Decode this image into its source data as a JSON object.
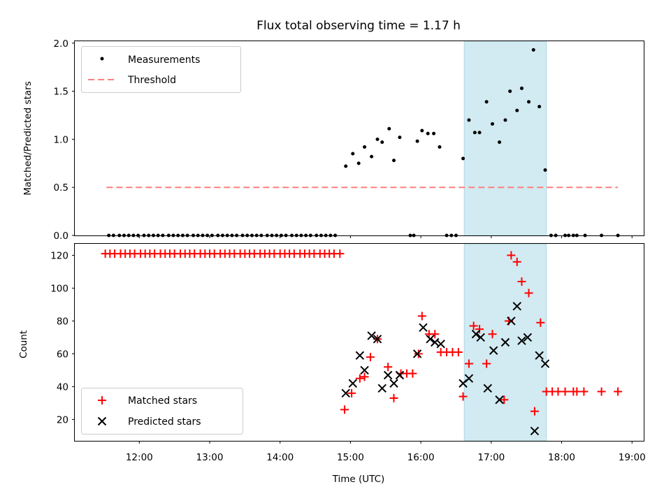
{
  "chart_data": [
    {
      "type": "scatter",
      "title": "Flux total observing time = 1.17 h",
      "xlabel": "",
      "ylabel": "Matched/Predicted stars",
      "xlim": [
        "11:05",
        "19:10"
      ],
      "ylim": [
        0,
        2.02
      ],
      "yticks": [
        "0.0",
        "0.5",
        "1.0",
        "1.5",
        "2.0"
      ],
      "highlight_span": {
        "start": "16:37",
        "end": "17:47",
        "color": "#add8e6"
      },
      "legend": {
        "position": "top-left",
        "entries": [
          "Measurements",
          "Threshold"
        ]
      },
      "threshold": {
        "name": "Threshold",
        "value": 0.5,
        "x_start": "11:32",
        "x_end": "18:48",
        "color": "#ff7f7f"
      },
      "series": [
        {
          "name": "Measurements",
          "color": "#000000",
          "points": [
            [
              "11:34",
              0
            ],
            [
              "11:38",
              0
            ],
            [
              "11:43",
              0
            ],
            [
              "11:47",
              0
            ],
            [
              "11:51",
              0
            ],
            [
              "11:55",
              0
            ],
            [
              "11:59",
              0
            ],
            [
              "12:04",
              0
            ],
            [
              "12:08",
              0
            ],
            [
              "12:12",
              0
            ],
            [
              "12:16",
              0
            ],
            [
              "12:20",
              0
            ],
            [
              "12:25",
              0
            ],
            [
              "12:29",
              0
            ],
            [
              "12:33",
              0
            ],
            [
              "12:37",
              0
            ],
            [
              "12:41",
              0
            ],
            [
              "12:46",
              0
            ],
            [
              "12:50",
              0
            ],
            [
              "12:54",
              0
            ],
            [
              "12:58",
              0
            ],
            [
              "13:02",
              0
            ],
            [
              "13:07",
              0
            ],
            [
              "13:11",
              0
            ],
            [
              "13:15",
              0
            ],
            [
              "13:19",
              0
            ],
            [
              "13:23",
              0
            ],
            [
              "13:28",
              0
            ],
            [
              "13:32",
              0
            ],
            [
              "13:36",
              0
            ],
            [
              "13:40",
              0
            ],
            [
              "13:44",
              0
            ],
            [
              "13:49",
              0
            ],
            [
              "13:53",
              0
            ],
            [
              "13:57",
              0
            ],
            [
              "14:01",
              0
            ],
            [
              "14:05",
              0
            ],
            [
              "14:10",
              0
            ],
            [
              "14:14",
              0
            ],
            [
              "14:18",
              0
            ],
            [
              "14:22",
              0
            ],
            [
              "14:26",
              0
            ],
            [
              "14:31",
              0
            ],
            [
              "14:35",
              0
            ],
            [
              "14:39",
              0
            ],
            [
              "14:43",
              0
            ],
            [
              "14:47",
              0
            ],
            [
              "14:56",
              0.72
            ],
            [
              "15:02",
              0.85
            ],
            [
              "15:07",
              0.75
            ],
            [
              "15:12",
              0.92
            ],
            [
              "15:18",
              0.82
            ],
            [
              "15:23",
              1.0
            ],
            [
              "15:27",
              0.97
            ],
            [
              "15:33",
              1.11
            ],
            [
              "15:37",
              0.78
            ],
            [
              "15:42",
              1.02
            ],
            [
              "15:51",
              0
            ],
            [
              "15:54",
              0
            ],
            [
              "15:57",
              0.98
            ],
            [
              "16:01",
              1.09
            ],
            [
              "16:06",
              1.06
            ],
            [
              "16:11",
              1.06
            ],
            [
              "16:16",
              0.92
            ],
            [
              "16:22",
              0
            ],
            [
              "16:26",
              0
            ],
            [
              "16:30",
              0
            ],
            [
              "16:36",
              0.8
            ],
            [
              "16:41",
              1.2
            ],
            [
              "16:46",
              1.07
            ],
            [
              "16:50",
              1.07
            ],
            [
              "16:56",
              1.39
            ],
            [
              "17:01",
              1.16
            ],
            [
              "17:07",
              0.97
            ],
            [
              "17:12",
              1.2
            ],
            [
              "17:16",
              1.5
            ],
            [
              "17:22",
              1.3
            ],
            [
              "17:26",
              1.53
            ],
            [
              "17:32",
              1.39
            ],
            [
              "17:36",
              1.93
            ],
            [
              "17:41",
              1.34
            ],
            [
              "17:46",
              0.68
            ],
            [
              "17:51",
              0
            ],
            [
              "17:55",
              0
            ],
            [
              "18:03",
              0
            ],
            [
              "18:06",
              0
            ],
            [
              "18:10",
              0
            ],
            [
              "18:13",
              0
            ],
            [
              "18:20",
              0
            ],
            [
              "18:34",
              0
            ],
            [
              "18:48",
              0
            ]
          ]
        }
      ]
    },
    {
      "type": "scatter",
      "title": "",
      "xlabel": "Time (UTC)",
      "ylabel": "Count",
      "xlim": [
        "11:05",
        "19:10"
      ],
      "ylim": [
        7,
        127
      ],
      "xticks": [
        "12:00",
        "13:00",
        "14:00",
        "15:00",
        "16:00",
        "17:00",
        "18:00",
        "19:00"
      ],
      "yticks": [
        "20",
        "40",
        "60",
        "80",
        "100",
        "120"
      ],
      "highlight_span": {
        "start": "16:37",
        "end": "17:47",
        "color": "#add8e6"
      },
      "legend": {
        "position": "bottom-left",
        "entries": [
          "Matched stars",
          "Predicted stars"
        ]
      },
      "series": [
        {
          "name": "Matched stars",
          "color": "#ff0000",
          "marker": "plus",
          "points": [
            [
              "11:31",
              121
            ],
            [
              "11:35",
              121
            ],
            [
              "11:39",
              121
            ],
            [
              "11:44",
              121
            ],
            [
              "11:48",
              121
            ],
            [
              "11:52",
              121
            ],
            [
              "11:56",
              121
            ],
            [
              "12:01",
              121
            ],
            [
              "12:05",
              121
            ],
            [
              "12:09",
              121
            ],
            [
              "12:13",
              121
            ],
            [
              "12:18",
              121
            ],
            [
              "12:22",
              121
            ],
            [
              "12:26",
              121
            ],
            [
              "12:30",
              121
            ],
            [
              "12:35",
              121
            ],
            [
              "12:39",
              121
            ],
            [
              "12:43",
              121
            ],
            [
              "12:47",
              121
            ],
            [
              "12:52",
              121
            ],
            [
              "12:56",
              121
            ],
            [
              "13:00",
              121
            ],
            [
              "13:04",
              121
            ],
            [
              "13:09",
              121
            ],
            [
              "13:13",
              121
            ],
            [
              "13:17",
              121
            ],
            [
              "13:21",
              121
            ],
            [
              "13:26",
              121
            ],
            [
              "13:30",
              121
            ],
            [
              "13:34",
              121
            ],
            [
              "13:38",
              121
            ],
            [
              "13:43",
              121
            ],
            [
              "13:47",
              121
            ],
            [
              "13:51",
              121
            ],
            [
              "13:55",
              121
            ],
            [
              "14:00",
              121
            ],
            [
              "14:04",
              121
            ],
            [
              "14:08",
              121
            ],
            [
              "14:12",
              121
            ],
            [
              "14:17",
              121
            ],
            [
              "14:21",
              121
            ],
            [
              "14:25",
              121
            ],
            [
              "14:29",
              121
            ],
            [
              "14:34",
              121
            ],
            [
              "14:38",
              121
            ],
            [
              "14:42",
              121
            ],
            [
              "14:46",
              121
            ],
            [
              "14:51",
              121
            ],
            [
              "14:55",
              26
            ],
            [
              "15:01",
              36
            ],
            [
              "15:08",
              45
            ],
            [
              "15:12",
              46
            ],
            [
              "15:17",
              58
            ],
            [
              "15:23",
              69
            ],
            [
              "15:32",
              52
            ],
            [
              "15:37",
              33
            ],
            [
              "15:43",
              48
            ],
            [
              "15:48",
              48
            ],
            [
              "15:53",
              48
            ],
            [
              "15:58",
              60
            ],
            [
              "16:01",
              83
            ],
            [
              "16:07",
              72
            ],
            [
              "16:12",
              72
            ],
            [
              "16:17",
              61
            ],
            [
              "16:22",
              61
            ],
            [
              "16:27",
              61
            ],
            [
              "16:32",
              61
            ],
            [
              "16:36",
              34
            ],
            [
              "16:41",
              54
            ],
            [
              "16:45",
              77
            ],
            [
              "16:50",
              75
            ],
            [
              "16:56",
              54
            ],
            [
              "17:01",
              72
            ],
            [
              "17:11",
              32
            ],
            [
              "17:15",
              80
            ],
            [
              "17:17",
              120
            ],
            [
              "17:22",
              116
            ],
            [
              "17:26",
              104
            ],
            [
              "17:32",
              97
            ],
            [
              "17:37",
              25
            ],
            [
              "17:42",
              79
            ],
            [
              "17:47",
              37
            ],
            [
              "17:52",
              37
            ],
            [
              "17:57",
              37
            ],
            [
              "18:03",
              37
            ],
            [
              "18:10",
              37
            ],
            [
              "18:13",
              37
            ],
            [
              "18:19",
              37
            ],
            [
              "18:34",
              37
            ],
            [
              "18:48",
              37
            ]
          ]
        },
        {
          "name": "Predicted stars",
          "color": "#000000",
          "marker": "x",
          "points": [
            [
              "14:56",
              36
            ],
            [
              "15:02",
              42
            ],
            [
              "15:08",
              59
            ],
            [
              "15:12",
              50
            ],
            [
              "15:18",
              71
            ],
            [
              "15:23",
              69
            ],
            [
              "15:27",
              39
            ],
            [
              "15:32",
              47
            ],
            [
              "15:37",
              42
            ],
            [
              "15:42",
              47
            ],
            [
              "15:57",
              60
            ],
            [
              "16:02",
              76
            ],
            [
              "16:08",
              69
            ],
            [
              "16:12",
              67
            ],
            [
              "16:17",
              66
            ],
            [
              "16:36",
              42
            ],
            [
              "16:41",
              45
            ],
            [
              "16:47",
              72
            ],
            [
              "16:51",
              70
            ],
            [
              "16:57",
              39
            ],
            [
              "17:02",
              62
            ],
            [
              "17:07",
              32
            ],
            [
              "17:12",
              67
            ],
            [
              "17:17",
              80
            ],
            [
              "17:22",
              89
            ],
            [
              "17:26",
              68
            ],
            [
              "17:31",
              70
            ],
            [
              "17:37",
              13
            ],
            [
              "17:41",
              59
            ],
            [
              "17:46",
              54
            ]
          ]
        }
      ]
    }
  ]
}
